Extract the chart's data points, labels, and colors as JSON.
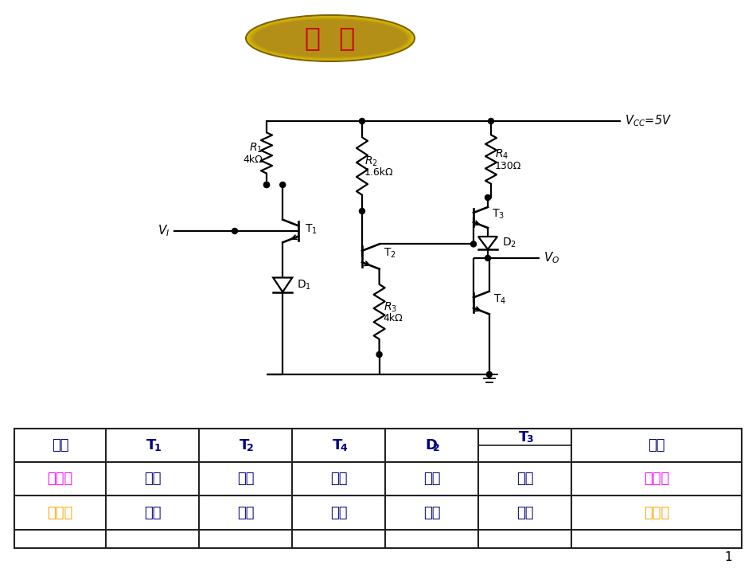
{
  "title": "复  习",
  "title_color": "#CC0000",
  "title_bg_start": "#E8D060",
  "title_bg_end": "#A08010",
  "page_number": "1",
  "circuit_color": "#000000",
  "table": {
    "col1_header": "输入",
    "col2_header": "T",
    "col3_header": "T",
    "col4_header": "T",
    "col5_header": "D",
    "col6_header": "T",
    "col7_header": "输出",
    "row1": [
      "低电平",
      "饱和",
      "截止",
      "截止",
      "导通",
      "导通",
      "高电平"
    ],
    "row2": [
      "高电平",
      "倒置",
      "饱和",
      "饱和",
      "截止",
      "截止",
      "低电平"
    ],
    "row1_color1": "#FF00FF",
    "row1_color2": "#000080",
    "row1_colorlast": "#FF00FF",
    "row2_color1": "#FFA500",
    "row2_color2": "#000080",
    "row2_colorlast": "#FFA500",
    "header_color": "#000080",
    "border_color": "#333333"
  },
  "vcc_label": "$V_{CC}$=5V",
  "vi_label": "$V_{I}$",
  "vo_label": "$V_{O}$",
  "r1_label": "$R_1$",
  "r1_val": "4kΩ",
  "r2_label": "$R_2$",
  "r2_val": "1.6kΩ",
  "r3_label": "$R_3$",
  "r3_val": "4kΩ",
  "r4_label": "$R_4$",
  "r4_val": "130Ω",
  "d1_label": "D$_1$",
  "d2_label": "D$_2$",
  "t1_label": "T$_1$",
  "t2_label": "T$_2$",
  "t3_label": "T$_3$",
  "t4_label": "T$_4$"
}
